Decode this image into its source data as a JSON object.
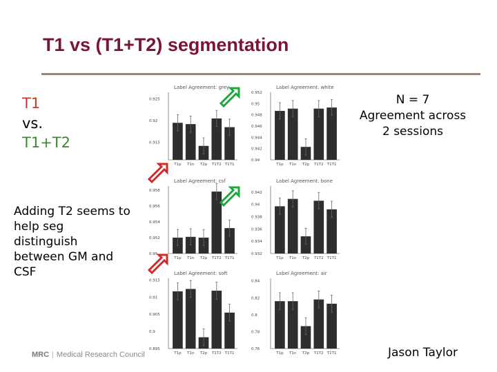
{
  "slide": {
    "title": "T1 vs (T1+T2) segmentation",
    "left_t1": "T1",
    "left_vs": "vs.",
    "left_t1t2": "T1+T2",
    "adding_text": "Adding T2 seems to help seg distinguish between GM and CSF",
    "n_line": "N = 7",
    "agreement_line1": "Agreement across",
    "agreement_line2": "2 sessions",
    "author": "Jason Taylor",
    "logo_mrc": "MRC",
    "logo_sep": "|",
    "logo_text": "Medical Research Council",
    "colors": {
      "title": "#7b1436",
      "t1": "#c0392b",
      "t1t2": "#3a8a2a",
      "arrow_green": "#1fa83a",
      "arrow_red": "#d42a2a",
      "bar": "#2e2e2e"
    },
    "arrow_icons": [
      "green-arrow-up-right",
      "green-arrow-up-right",
      "red-arrow-up-right",
      "red-arrow-up-right"
    ]
  },
  "chart_data": [
    {
      "type": "bar",
      "title": "Label Agreement: grey",
      "categories": [
        "T1p",
        "T1n",
        "T2p",
        "T1T2",
        "T1T1"
      ],
      "values": [
        0.9195,
        0.9192,
        0.9142,
        0.9205,
        0.9185
      ],
      "yticks": [
        "0.925",
        "0.92",
        "0.915"
      ],
      "ytick_values": [
        0.925,
        0.92,
        0.915
      ],
      "ylim": [
        0.911,
        0.9265
      ]
    },
    {
      "type": "bar",
      "title": "Label Agreement: white",
      "categories": [
        "T1p",
        "T1n",
        "T2p",
        "T1T2",
        "T1T1"
      ],
      "values": [
        0.9487,
        0.9491,
        0.9423,
        0.9491,
        0.9493
      ],
      "yticks": [
        "0.952",
        "0.95",
        "0.948",
        "0.946",
        "0.944",
        "0.942",
        "0.94"
      ],
      "ytick_values": [
        0.952,
        0.95,
        0.948,
        0.946,
        0.944,
        0.942,
        0.94
      ],
      "ylim": [
        0.94,
        0.952
      ]
    },
    {
      "type": "bar",
      "title": "Label Agreement: csf",
      "categories": [
        "T1p",
        "T1n",
        "T2p",
        "T1T2",
        "T1T1"
      ],
      "values": [
        0.952,
        0.9521,
        0.952,
        0.9578,
        0.9532
      ],
      "yticks": [
        "0.958",
        "0.956",
        "0.954",
        "0.952",
        "0.95"
      ],
      "ytick_values": [
        0.958,
        0.956,
        0.954,
        0.952,
        0.95
      ],
      "ylim": [
        0.95,
        0.9585
      ]
    },
    {
      "type": "bar",
      "title": "Label Agreement: bone",
      "categories": [
        "T1p",
        "T1n",
        "T2p",
        "T1T2",
        "T1T1"
      ],
      "values": [
        0.9397,
        0.9409,
        0.9348,
        0.9406,
        0.9392
      ],
      "yticks": [
        "0.942",
        "0.94",
        "0.938",
        "0.936",
        "0.934",
        "0.932"
      ],
      "ytick_values": [
        0.942,
        0.94,
        0.938,
        0.936,
        0.934,
        0.932
      ],
      "ylim": [
        0.932,
        0.943
      ]
    },
    {
      "type": "bar",
      "title": "Label Agreement: soft",
      "categories": [
        "T1p",
        "T1n",
        "T2p",
        "T1T2",
        "T1T1"
      ],
      "values": [
        0.9117,
        0.9124,
        0.8983,
        0.9119,
        0.9055
      ],
      "yticks": [
        "0.915",
        "0.91",
        "0.905",
        "0.9",
        "0.895"
      ],
      "ytick_values": [
        0.915,
        0.91,
        0.905,
        0.9,
        0.895
      ],
      "ylim": [
        0.895,
        0.9155
      ]
    },
    {
      "type": "bar",
      "title": "Label Agreement: air",
      "categories": [
        "T1p",
        "T1n",
        "T2p",
        "T1T2",
        "T1T1"
      ],
      "values": [
        0.816,
        0.816,
        0.7865,
        0.818,
        0.813
      ],
      "yticks": [
        "0.84",
        "0.82",
        "0.8",
        "0.78",
        "0.76"
      ],
      "ytick_values": [
        0.84,
        0.82,
        0.8,
        0.78,
        0.76
      ],
      "ylim": [
        0.76,
        0.843
      ]
    }
  ]
}
